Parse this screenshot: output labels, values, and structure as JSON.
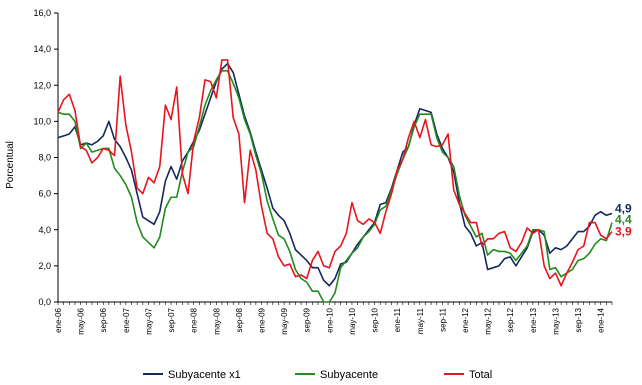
{
  "chart_data": {
    "type": "line",
    "title": "",
    "xlabel": "",
    "ylabel": "Porcentual",
    "ylim": [
      0,
      16
    ],
    "yticks": [
      "0,0",
      "2,0",
      "4,0",
      "6,0",
      "8,0",
      "10,0",
      "12,0",
      "14,0",
      "16,0"
    ],
    "grid": false,
    "legend_position": "bottom",
    "x_tick_labels": [
      "ene-06",
      "may-06",
      "sep-06",
      "ene-07",
      "may-07",
      "sep-07",
      "ene-08",
      "may-08",
      "sep-08",
      "ene-09",
      "may-09",
      "sep-09",
      "ene-10",
      "may-10",
      "sep-10",
      "ene-11",
      "may-11",
      "sep-11",
      "ene-12",
      "may-12",
      "sep-12",
      "ene-13",
      "may-13",
      "sep-13",
      "ene-14"
    ],
    "series": [
      {
        "name": "Subyacente x1",
        "color": "#14285f",
        "end_label": "4,9",
        "values": [
          9.1,
          9.2,
          9.3,
          9.7,
          8.7,
          8.8,
          8.7,
          8.9,
          9.2,
          10.0,
          9.0,
          8.6,
          8.0,
          7.3,
          6.0,
          4.7,
          4.5,
          4.3,
          5.0,
          6.7,
          7.5,
          6.8,
          7.8,
          8.3,
          8.9,
          9.5,
          10.4,
          11.3,
          12.2,
          12.9,
          13.2,
          12.7,
          11.5,
          10.3,
          9.4,
          8.3,
          7.3,
          6.3,
          5.2,
          4.8,
          4.5,
          3.8,
          2.9,
          2.6,
          2.3,
          1.9,
          1.9,
          1.2,
          0.9,
          1.3,
          2.1,
          2.2,
          2.7,
          3.2,
          3.6,
          4.0,
          4.4,
          5.4,
          5.5,
          6.3,
          7.3,
          8.3,
          8.6,
          9.8,
          10.7,
          10.6,
          10.5,
          9.3,
          8.5,
          8.0,
          7.2,
          5.5,
          4.2,
          3.8,
          3.1,
          3.3,
          1.8,
          1.9,
          2.0,
          2.4,
          2.5,
          2.0,
          2.5,
          3.0,
          3.9,
          4.0,
          3.7,
          2.7,
          3.0,
          2.9,
          3.1,
          3.5,
          3.9,
          3.9,
          4.2,
          4.8,
          5.0,
          4.8,
          4.9
        ]
      },
      {
        "name": "Subyacente",
        "color": "#228b1e",
        "end_label": "4,4",
        "values": [
          10.5,
          10.4,
          10.4,
          10.0,
          8.5,
          8.8,
          8.3,
          8.4,
          8.5,
          8.5,
          7.4,
          7.0,
          6.5,
          5.8,
          4.4,
          3.6,
          3.3,
          3.0,
          3.6,
          5.2,
          5.8,
          5.8,
          7.2,
          8.3,
          8.6,
          9.7,
          10.9,
          11.7,
          12.3,
          12.8,
          12.8,
          12.1,
          11.3,
          10.1,
          9.3,
          8.1,
          7.1,
          5.6,
          4.6,
          3.7,
          3.5,
          2.8,
          1.8,
          1.3,
          1.1,
          0.6,
          0.6,
          0.0,
          0.0,
          0.5,
          1.9,
          2.3,
          2.7,
          3.0,
          3.6,
          3.9,
          4.3,
          5.1,
          5.3,
          6.2,
          7.1,
          7.9,
          8.6,
          9.7,
          10.4,
          10.4,
          10.4,
          9.1,
          8.3,
          8.0,
          7.5,
          5.9,
          4.8,
          4.2,
          3.6,
          3.8,
          2.6,
          2.9,
          2.8,
          2.8,
          2.7,
          2.3,
          2.7,
          3.1,
          4.0,
          4.0,
          3.9,
          1.8,
          1.9,
          1.4,
          1.6,
          1.8,
          2.3,
          2.4,
          2.7,
          3.2,
          3.5,
          3.4,
          4.4
        ]
      },
      {
        "name": "Total",
        "color": "#e8141e",
        "end_label": "3,9",
        "values": [
          10.5,
          11.2,
          11.5,
          10.6,
          8.6,
          8.4,
          7.7,
          8.0,
          8.5,
          8.4,
          8.1,
          12.5,
          9.8,
          8.3,
          6.3,
          6.0,
          6.9,
          6.6,
          7.5,
          10.9,
          10.1,
          11.9,
          7.1,
          6.0,
          8.9,
          10.2,
          12.3,
          12.2,
          11.3,
          13.4,
          13.4,
          10.2,
          9.3,
          5.5,
          8.4,
          7.3,
          5.3,
          3.8,
          3.5,
          2.5,
          2.0,
          2.1,
          1.4,
          1.5,
          1.3,
          2.3,
          2.8,
          2.0,
          1.9,
          2.8,
          3.1,
          3.8,
          5.5,
          4.5,
          4.3,
          4.6,
          4.4,
          3.8,
          5.0,
          6.0,
          7.3,
          7.9,
          9.1,
          10.0,
          9.1,
          10.1,
          8.7,
          8.6,
          8.7,
          9.3,
          6.2,
          5.4,
          4.9,
          4.4,
          4.4,
          3.1,
          3.5,
          3.5,
          3.8,
          3.9,
          3.0,
          2.8,
          3.3,
          4.1,
          3.8,
          4.0,
          2.0,
          1.3,
          1.6,
          0.9,
          1.6,
          2.2,
          2.9,
          3.1,
          4.4,
          4.4,
          3.7,
          3.5,
          3.9
        ]
      }
    ]
  }
}
